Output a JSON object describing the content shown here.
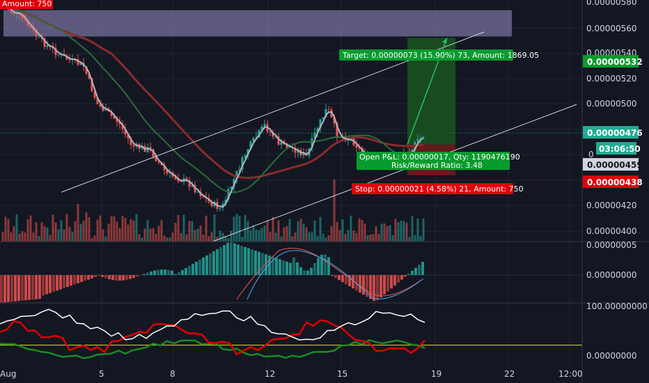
{
  "colors": {
    "background": "#131722",
    "grid": "#1f2431",
    "axis_text": "#d1d4dc",
    "up": "#26a69a",
    "down": "#ef5350",
    "zone": "#9a8fc9",
    "target_zone": "#1b5e20",
    "stop_zone": "#7f1d1d",
    "target_tag": "#089c2e",
    "stop_tag": "#e0000a",
    "current_tag": "#22ab94"
  },
  "price_axis": {
    "labels": [
      "0.00000560",
      "0.00000540",
      "0.00000520",
      "0.00000500",
      "0.00000480",
      "0.00000420",
      "0.00000400"
    ],
    "top_clipped": "0.00000580",
    "zero_label": "0",
    "markers": {
      "target": "0.00000532",
      "current": "0.00000476",
      "countdown": "03:06:50",
      "entry": "0.00000459",
      "stop": "0.00000438"
    }
  },
  "time_axis": {
    "labels": [
      "Aug",
      "5",
      "8",
      "12",
      "15",
      "19",
      "22",
      "12:00"
    ]
  },
  "macd_axis": {
    "top_clipped": "0.00000005",
    "labels": [
      "0.00000000"
    ]
  },
  "osc_axis": {
    "labels": [
      "100.00000000",
      "0.00000000"
    ]
  },
  "annotations": {
    "top_stop_fragment": "Amount: 750",
    "target": "Target: 0.00000073 (15.90%) 73, Amount: 1869.05",
    "open_pnl": "Open P&L: 0.00000017, Qty: 1190476190",
    "risk_reward": "Risk/Reward Ratio: 3.48",
    "stop": "Stop: 0.00000021 (4.58%) 21, Amount: 750"
  },
  "chart_data": {
    "type": "candlestick",
    "price_range": [
      3.925e-06,
      5.58e-06
    ],
    "horizontal_zone": [
      5.33e-06,
      5.51e-06
    ],
    "position": {
      "entry": 4.59e-06,
      "target": 5.32e-06,
      "stop": 4.38e-06
    },
    "current_price": 4.76e-06,
    "macd_zero": 0,
    "oscillator_range": [
      0,
      100
    ],
    "oscillator_level": 20
  }
}
